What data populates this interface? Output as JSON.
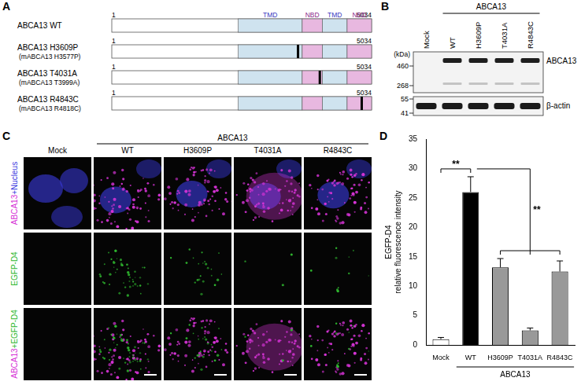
{
  "panel_labels": [
    "A",
    "B",
    "C",
    "D"
  ],
  "panel_a": {
    "start": 1,
    "end": 5034,
    "domains": [
      {
        "label": "TMD",
        "start": 2450,
        "end": 3690,
        "color": "#cfe3ef",
        "text_color": "#3b3bbf"
      },
      {
        "label": "NBD",
        "start": 3690,
        "end": 4080,
        "color": "#e8b8e0",
        "text_color": "#8b2a8b"
      },
      {
        "label": "TMD",
        "start": 4080,
        "end": 4560,
        "color": "#cfe3ef",
        "text_color": "#3b3bbf"
      },
      {
        "label": "NBD",
        "start": 4560,
        "end": 5034,
        "color": "#e8b8e0",
        "text_color": "#8b2a8b"
      }
    ],
    "constructs": [
      {
        "label": "ABCA13 WT"
      },
      {
        "label": "ABCA13 H3609P",
        "mouse": "(mABCA13 H3577P)",
        "position": 3609
      },
      {
        "label": "ABCA13 T4031A",
        "mouse": "(mABCA13 T3999A)",
        "position": 4031
      },
      {
        "label": "ABCA13 R4843C",
        "mouse": "(mABCA13 R4818C)",
        "position": 4843
      }
    ]
  },
  "panel_b": {
    "group": "ABCA13",
    "lanes": [
      "Mock",
      "WT",
      "H3609P",
      "T4031A",
      "R4843C"
    ],
    "unit": "(kDa)",
    "upper_markers": [
      460,
      268
    ],
    "lower_markers": [
      55,
      41
    ],
    "bands": [
      {
        "label": "ABCA13",
        "present": [
          false,
          true,
          true,
          true,
          true
        ]
      },
      {
        "label": "β-actin",
        "present": [
          true,
          true,
          true,
          true,
          true
        ]
      }
    ]
  },
  "panel_c": {
    "group": "ABCA13",
    "columns": [
      "Mock",
      "WT",
      "H3609P",
      "T4031A",
      "R4843C"
    ],
    "rows": [
      [
        {
          "text": "ABCA13",
          "color": "#d633d6"
        },
        {
          "text": "+Nucleus",
          "color": "#3a3ae0"
        }
      ],
      [
        {
          "text": "EGFP-D4",
          "color": "#2fb82f"
        }
      ],
      [
        {
          "text": "ABCA13",
          "color": "#d633d6"
        },
        {
          "text": "+EGFP-D4",
          "color": "#2fb82f"
        }
      ]
    ]
  },
  "chart_data": {
    "type": "bar",
    "categories": [
      "Mock",
      "WT",
      "H3609P",
      "T4031A",
      "R4843C"
    ],
    "values": [
      1.0,
      26.0,
      13.2,
      2.5,
      12.5
    ],
    "errors": [
      0.3,
      2.6,
      1.5,
      0.4,
      1.8
    ],
    "colors": [
      "#ffffff",
      "#000000",
      "#999999",
      "#999999",
      "#999999"
    ],
    "y_label": [
      "EGFP-D4",
      "relative fluorescence intensity"
    ],
    "ylim": [
      0,
      35
    ],
    "yticks": [
      0,
      5,
      10,
      15,
      20,
      25,
      30,
      35
    ],
    "grid": false,
    "group": {
      "label": "ABCA13",
      "categories": [
        "WT",
        "H3609P",
        "T4031A",
        "R4843C"
      ]
    },
    "annotations": [
      {
        "text": "**",
        "from": "Mock",
        "to": [
          "WT"
        ]
      },
      {
        "text": "**",
        "from": "WT",
        "to": [
          "H3609P",
          "T4031A",
          "R4843C"
        ]
      }
    ]
  }
}
